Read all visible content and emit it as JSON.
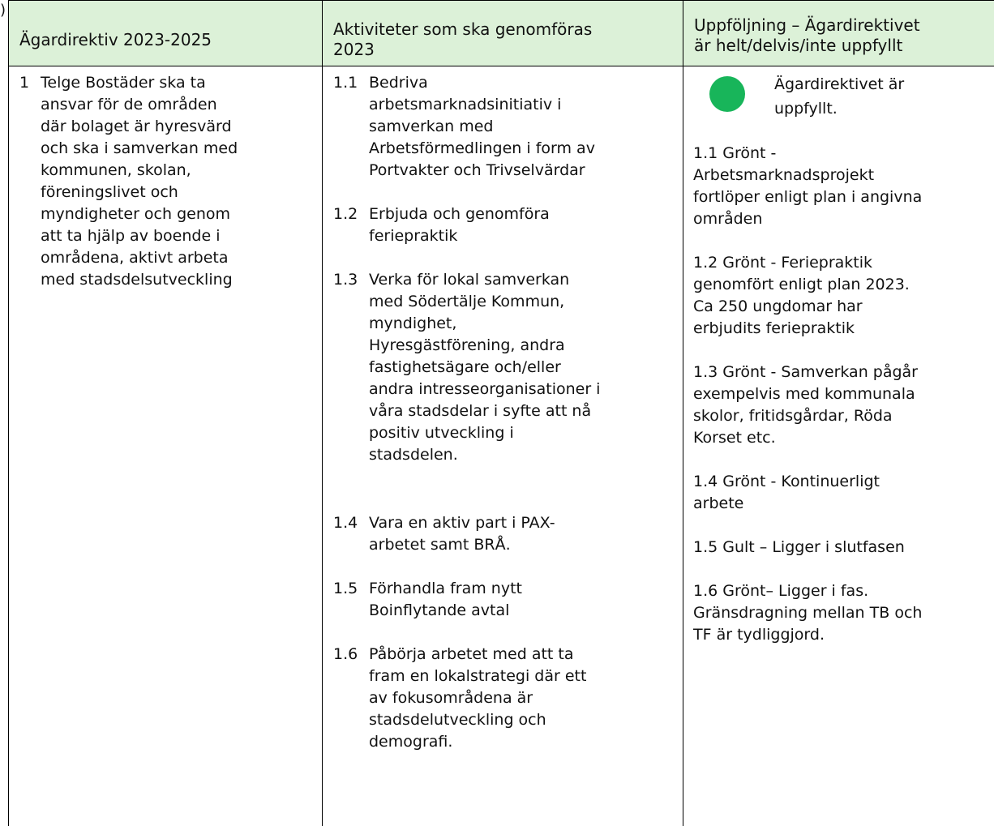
{
  "fragment": ")",
  "table": {
    "header": [
      "Ägardirektiv 2023-2025",
      [
        "Aktiviteter som ska genomföras",
        "2023"
      ],
      [
        "Uppföljning – Ägardirektivet",
        "är helt/delvis/inte uppfyllt"
      ]
    ],
    "rows": [
      {
        "number": "1",
        "directive": [
          "Telge Bostäder ska ta",
          "ansvar för de områden",
          "där bolaget är hyresvärd",
          "och ska i samverkan med",
          "kommunen, skolan,",
          "föreningslivet och",
          "myndigheter och genom",
          "att ta hjälp av boende i",
          "områdena, aktivt arbeta",
          "med stadsdelsutveckling"
        ],
        "activities": [
          {
            "number": "1.1",
            "lines": [
              "Bedriva",
              "arbetsmarknadsinitiativ i",
              "samverkan med",
              "Arbetsförmedlingen i form av",
              "Portvakter och Trivselvärdar"
            ]
          },
          {
            "number": "1.2",
            "lines": [
              "Erbjuda och genomföra",
              "feriepraktik"
            ]
          },
          {
            "number": "1.3",
            "lines": [
              "Verka för lokal samverkan",
              "med Södertälje Kommun,",
              "myndighet,",
              "Hyresgästförening, andra",
              "fastighetsägare och/eller",
              "andra intresseorganisationer i",
              "våra stadsdelar i syfte att nå",
              "positiv utveckling i",
              "stadsdelen."
            ]
          },
          {
            "number": "1.4",
            "lines": [
              "Vara en aktiv part i PAX-",
              "arbetet samt BRÅ."
            ]
          },
          {
            "number": "1.5",
            "lines": [
              "Förhandla fram nytt",
              "Boinflytande avtal"
            ]
          },
          {
            "number": "1.6",
            "lines": [
              "Påbörja arbetet med att ta",
              "fram en lokalstrategi där ett",
              "av fokusområdena är",
              "stadsdelutveckling och",
              "demografi."
            ]
          }
        ],
        "status": [
          "Ägardirektivet är",
          "uppfyllt."
        ],
        "followup": [
          [
            "1.1 Grönt -",
            "Arbetsmarknadsprojekt",
            "fortlöper enligt plan i angivna",
            "områden"
          ],
          [
            "1.2 Grönt - Feriepraktik",
            "genomfört enligt plan 2023.",
            "Ca 250 ungdomar har",
            "erbjudits feriepraktik"
          ],
          [
            "1.3 Grönt - Samverkan pågår",
            "exempelvis med kommunala",
            "skolor, fritidsgårdar, Röda",
            "Korset etc."
          ],
          [
            "1.4 Grönt - Kontinuerligt",
            "arbete"
          ],
          [
            "1.5 Gult – Ligger i slutfasen"
          ],
          [
            "1.6 Grönt– Ligger i fas.",
            "Gränsdragning mellan TB och",
            "TF är tydliggjord."
          ]
        ]
      }
    ]
  }
}
